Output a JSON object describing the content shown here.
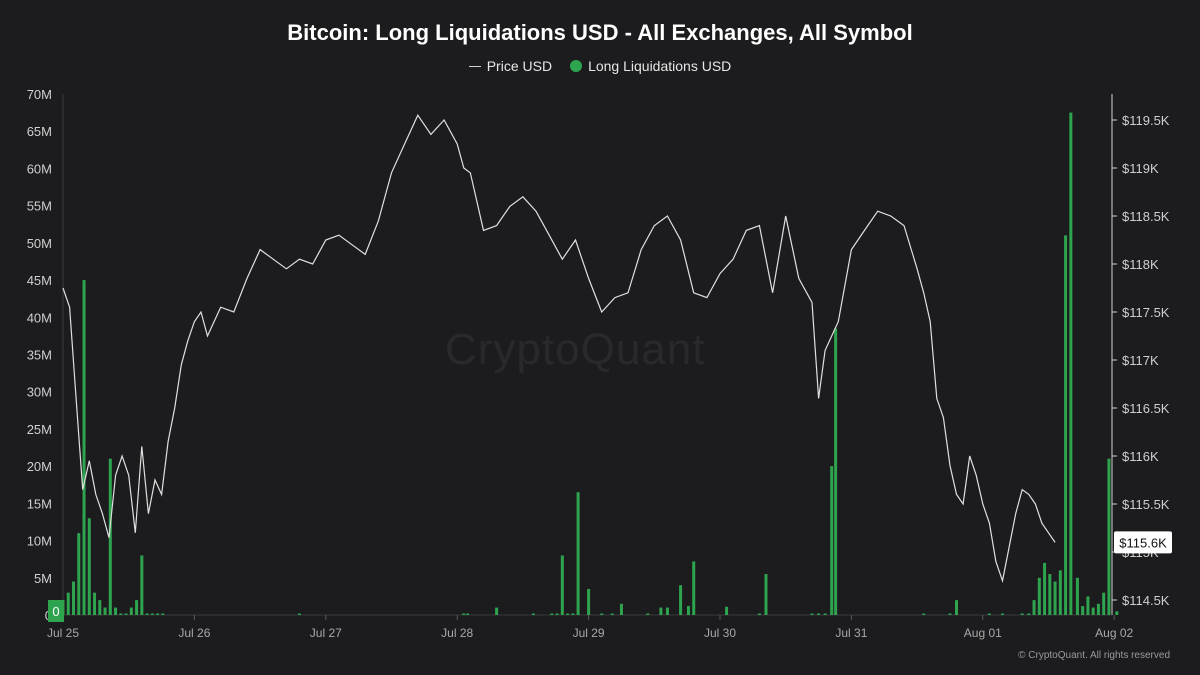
{
  "chart_data": {
    "type": "bar+line",
    "title": "Bitcoin: Long Liquidations USD - All Exchanges, All Symbol",
    "legend": [
      "Price USD",
      "Long Liquidations USD"
    ],
    "legend_placement": "top-center",
    "colors": {
      "bars": "#2ea44f",
      "line": "#e0e0e0",
      "background": "#1c1c1f"
    },
    "x_tick_labels": [
      "Jul 25",
      "Jul 26",
      "Jul 27",
      "Jul 28",
      "Jul 29",
      "Jul 30",
      "Jul 31",
      "Aug 01",
      "Aug 02"
    ],
    "y_left_ticks": [
      "0",
      "5M",
      "10M",
      "15M",
      "20M",
      "25M",
      "30M",
      "35M",
      "40M",
      "45M",
      "50M",
      "55M",
      "60M",
      "65M",
      "70M"
    ],
    "y_left_range": [
      0,
      70000000
    ],
    "y_right_ticks": [
      "$114.5K",
      "$115K",
      "$115.5K",
      "$116K",
      "$116.5K",
      "$117K",
      "$117.5K",
      "$118K",
      "$118.5K",
      "$119K",
      "$119.5K"
    ],
    "y_right_range": [
      114400,
      119700
    ],
    "last_price_label": "$115.6K",
    "grid": false,
    "series": [
      {
        "name": "Long Liquidations USD",
        "axis": "left",
        "points_x_days": [
          0.0,
          0.04,
          0.08,
          0.12,
          0.16,
          0.2,
          0.24,
          0.28,
          0.32,
          0.36,
          0.4,
          0.44,
          0.48,
          0.52,
          0.56,
          0.6,
          0.64,
          0.68,
          0.72,
          0.76,
          1.8,
          3.05,
          3.08,
          3.3,
          3.58,
          3.72,
          3.76,
          3.8,
          3.84,
          3.88,
          3.92,
          4.0,
          4.1,
          4.18,
          4.25,
          4.45,
          4.55,
          4.6,
          4.7,
          4.76,
          4.8,
          5.05,
          5.3,
          5.35,
          5.7,
          5.75,
          5.8,
          5.85,
          5.88,
          6.55,
          6.75,
          6.8,
          7.05,
          7.15,
          7.3,
          7.35,
          7.39,
          7.43,
          7.47,
          7.51,
          7.55,
          7.59,
          7.63,
          7.67,
          7.72,
          7.76,
          7.8,
          7.84,
          7.88,
          7.92,
          7.96,
          8.02
        ],
        "values": [
          2000000,
          3000000,
          4500000,
          11000000,
          45000000,
          13000000,
          3000000,
          2000000,
          1000000,
          21000000,
          1000000,
          200000,
          200000,
          1000000,
          2000000,
          8000000,
          200000,
          200000,
          200000,
          200000,
          200000,
          200000,
          200000,
          1000000,
          200000,
          200000,
          200000,
          8000000,
          200000,
          200000,
          16500000,
          3500000,
          200000,
          200000,
          1500000,
          200000,
          1000000,
          1000000,
          4000000,
          1200000,
          7200000,
          1100000,
          200000,
          5500000,
          200000,
          200000,
          200000,
          20000000,
          38500000,
          200000,
          200000,
          2000000,
          200000,
          200000,
          200000,
          200000,
          2000000,
          5000000,
          7000000,
          5500000,
          4500000,
          6000000,
          51000000,
          67500000,
          5000000,
          1200000,
          2500000,
          1000000,
          1500000,
          3000000,
          21000000,
          500000
        ]
      },
      {
        "name": "Price USD",
        "axis": "right",
        "points_x_days": [
          0.0,
          0.05,
          0.1,
          0.15,
          0.2,
          0.25,
          0.3,
          0.35,
          0.4,
          0.45,
          0.5,
          0.55,
          0.6,
          0.65,
          0.7,
          0.75,
          0.8,
          0.85,
          0.9,
          0.95,
          1.0,
          1.05,
          1.1,
          1.2,
          1.3,
          1.4,
          1.5,
          1.6,
          1.7,
          1.8,
          1.9,
          2.0,
          2.1,
          2.2,
          2.3,
          2.4,
          2.5,
          2.6,
          2.7,
          2.8,
          2.9,
          3.0,
          3.05,
          3.1,
          3.2,
          3.3,
          3.4,
          3.5,
          3.6,
          3.7,
          3.8,
          3.9,
          4.0,
          4.1,
          4.2,
          4.3,
          4.4,
          4.5,
          4.6,
          4.7,
          4.8,
          4.9,
          5.0,
          5.1,
          5.2,
          5.3,
          5.4,
          5.5,
          5.6,
          5.7,
          5.75,
          5.8,
          5.85,
          5.9,
          6.0,
          6.1,
          6.2,
          6.3,
          6.4,
          6.5,
          6.55,
          6.6,
          6.65,
          6.7,
          6.75,
          6.8,
          6.85,
          6.9,
          6.95,
          7.0,
          7.05,
          7.1,
          7.15,
          7.2,
          7.25,
          7.3,
          7.35,
          7.4,
          7.45,
          7.5,
          7.55
        ],
        "values": [
          117750,
          117550,
          116600,
          115650,
          115950,
          115600,
          115400,
          115150,
          115800,
          116000,
          115800,
          115200,
          116100,
          115400,
          115750,
          115600,
          116150,
          116500,
          116950,
          117200,
          117400,
          117500,
          117250,
          117550,
          117500,
          117850,
          118150,
          118050,
          117950,
          118050,
          118000,
          118250,
          118300,
          118200,
          118100,
          118450,
          118950,
          119250,
          119550,
          119350,
          119500,
          119250,
          119000,
          118950,
          118350,
          118400,
          118600,
          118700,
          118550,
          118300,
          118050,
          118250,
          117850,
          117500,
          117650,
          117700,
          118150,
          118400,
          118500,
          118250,
          117700,
          117650,
          117900,
          118050,
          118350,
          118400,
          117700,
          118500,
          117850,
          117600,
          116600,
          117100,
          117250,
          117400,
          118150,
          118350,
          118550,
          118500,
          118400,
          117950,
          117700,
          117400,
          116600,
          116400,
          115900,
          115600,
          115500,
          116000,
          115800,
          115500,
          115300,
          114900,
          114700,
          115050,
          115400,
          115650,
          115600,
          115500,
          115300,
          115200,
          115100
        ]
      }
    ]
  },
  "footer": {
    "copyright": "© CryptoQuant. All rights reserved"
  },
  "watermark": "CryptoQuant"
}
